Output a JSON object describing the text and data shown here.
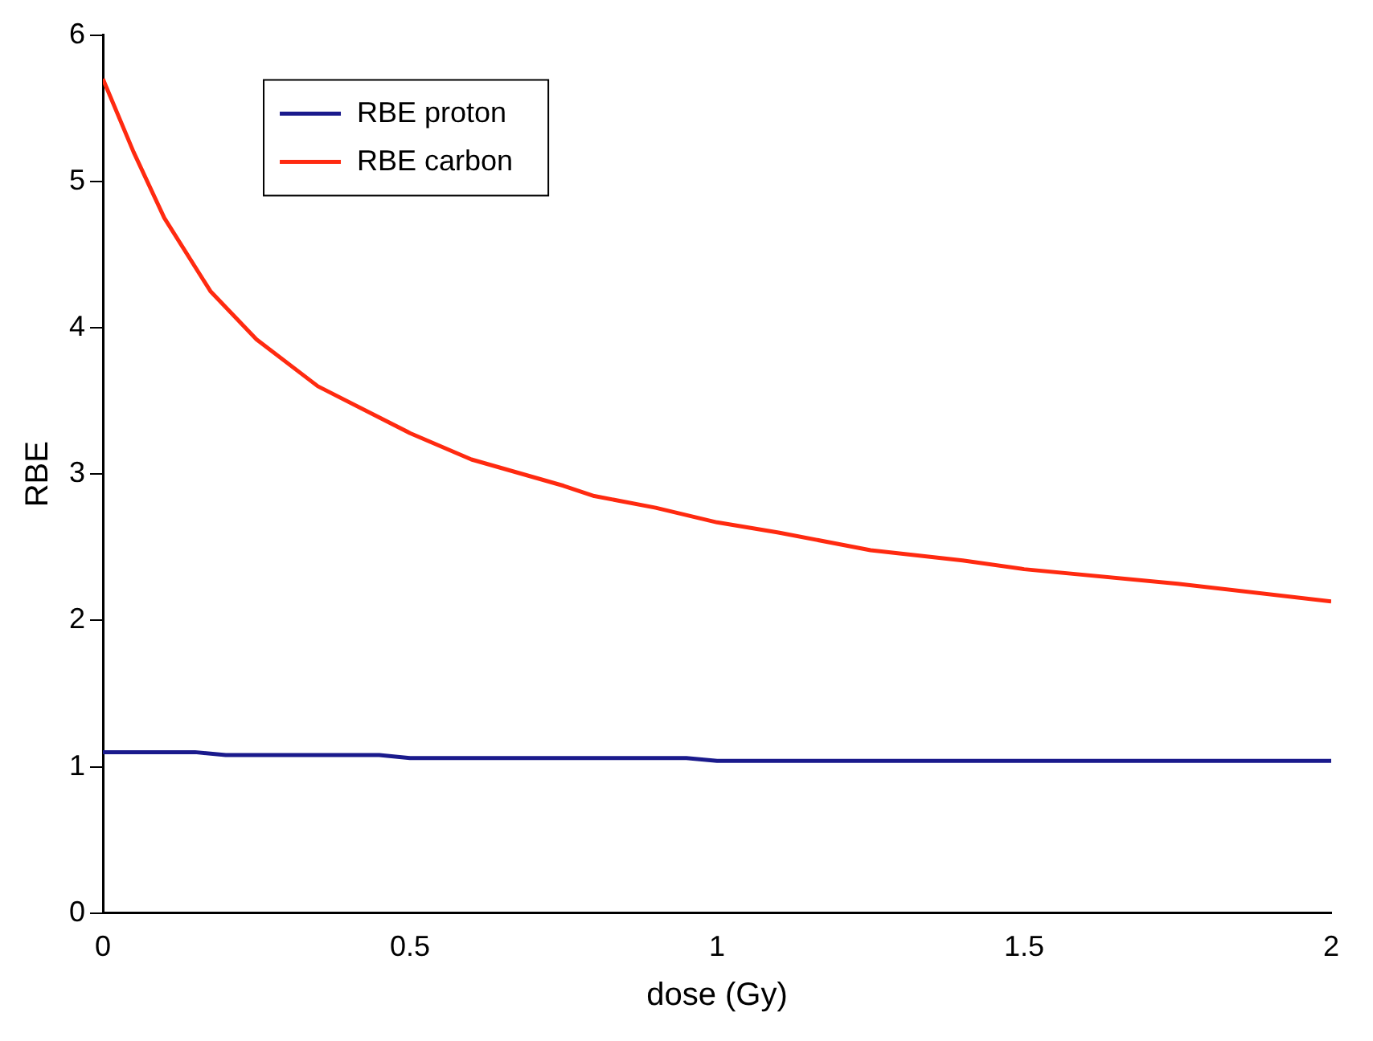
{
  "chart_data": {
    "type": "line",
    "xlabel": "dose (Gy)",
    "ylabel": "RBE",
    "xlim": [
      0,
      2
    ],
    "xticks": [
      0,
      0.5,
      1,
      1.5,
      2
    ],
    "ylim": [
      0,
      6
    ],
    "yticks": [
      0,
      1,
      2,
      3,
      4,
      5,
      6
    ],
    "grid": false,
    "legend": "top left",
    "marker": "none",
    "line_style": "solid",
    "series": [
      {
        "name": "RBE proton",
        "color": "#1a1a8c",
        "x": [
          0,
          0.15,
          0.2,
          0.45,
          0.5,
          0.95,
          1.0,
          2.0
        ],
        "values": [
          1.1,
          1.1,
          1.08,
          1.08,
          1.06,
          1.06,
          1.04,
          1.04
        ]
      },
      {
        "name": "RBE carbon",
        "color": "#ff2a10",
        "x": [
          0,
          0.05,
          0.1,
          0.175,
          0.25,
          0.35,
          0.5,
          0.6,
          0.75,
          0.8,
          0.9,
          1.0,
          1.1,
          1.25,
          1.4,
          1.5,
          1.75,
          2.0
        ],
        "values": [
          5.7,
          5.2,
          4.75,
          4.25,
          3.92,
          3.6,
          3.28,
          3.1,
          2.92,
          2.85,
          2.77,
          2.67,
          2.6,
          2.48,
          2.41,
          2.35,
          2.25,
          2.13
        ]
      }
    ]
  }
}
